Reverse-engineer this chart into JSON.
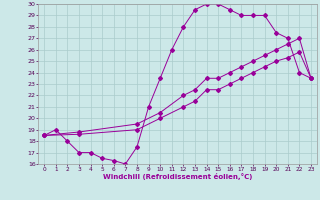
{
  "xlabel": "Windchill (Refroidissement éolien,°C)",
  "bg_color": "#cce8e8",
  "grid_color": "#aacccc",
  "line_color": "#990099",
  "xlim": [
    -0.5,
    23.5
  ],
  "ylim": [
    16,
    30
  ],
  "xticks": [
    0,
    1,
    2,
    3,
    4,
    5,
    6,
    7,
    8,
    9,
    10,
    11,
    12,
    13,
    14,
    15,
    16,
    17,
    18,
    19,
    20,
    21,
    22,
    23
  ],
  "yticks": [
    16,
    17,
    18,
    19,
    20,
    21,
    22,
    23,
    24,
    25,
    26,
    27,
    28,
    29,
    30
  ],
  "line1_x": [
    0,
    1,
    2,
    3,
    4,
    5,
    6,
    7,
    8,
    9,
    10,
    11,
    12,
    13,
    14,
    15,
    16,
    17,
    18,
    19,
    20,
    21,
    22,
    23
  ],
  "line1_y": [
    18.5,
    19.0,
    18.0,
    17.0,
    17.0,
    16.5,
    16.3,
    16.0,
    17.5,
    21.0,
    23.5,
    26.0,
    28.0,
    29.5,
    30.0,
    30.0,
    29.5,
    29.0,
    29.0,
    29.0,
    27.5,
    27.0,
    24.0,
    23.5
  ],
  "line2_x": [
    0,
    3,
    8,
    10,
    12,
    13,
    14,
    15,
    16,
    17,
    18,
    19,
    20,
    21,
    22,
    23
  ],
  "line2_y": [
    18.5,
    18.8,
    19.5,
    20.5,
    22.0,
    22.5,
    23.5,
    23.5,
    24.0,
    24.5,
    25.0,
    25.5,
    26.0,
    26.5,
    27.0,
    23.5
  ],
  "line3_x": [
    0,
    3,
    8,
    10,
    12,
    13,
    14,
    15,
    16,
    17,
    18,
    19,
    20,
    21,
    22,
    23
  ],
  "line3_y": [
    18.5,
    18.6,
    19.0,
    20.0,
    21.0,
    21.5,
    22.5,
    22.5,
    23.0,
    23.5,
    24.0,
    24.5,
    25.0,
    25.3,
    25.8,
    23.5
  ]
}
